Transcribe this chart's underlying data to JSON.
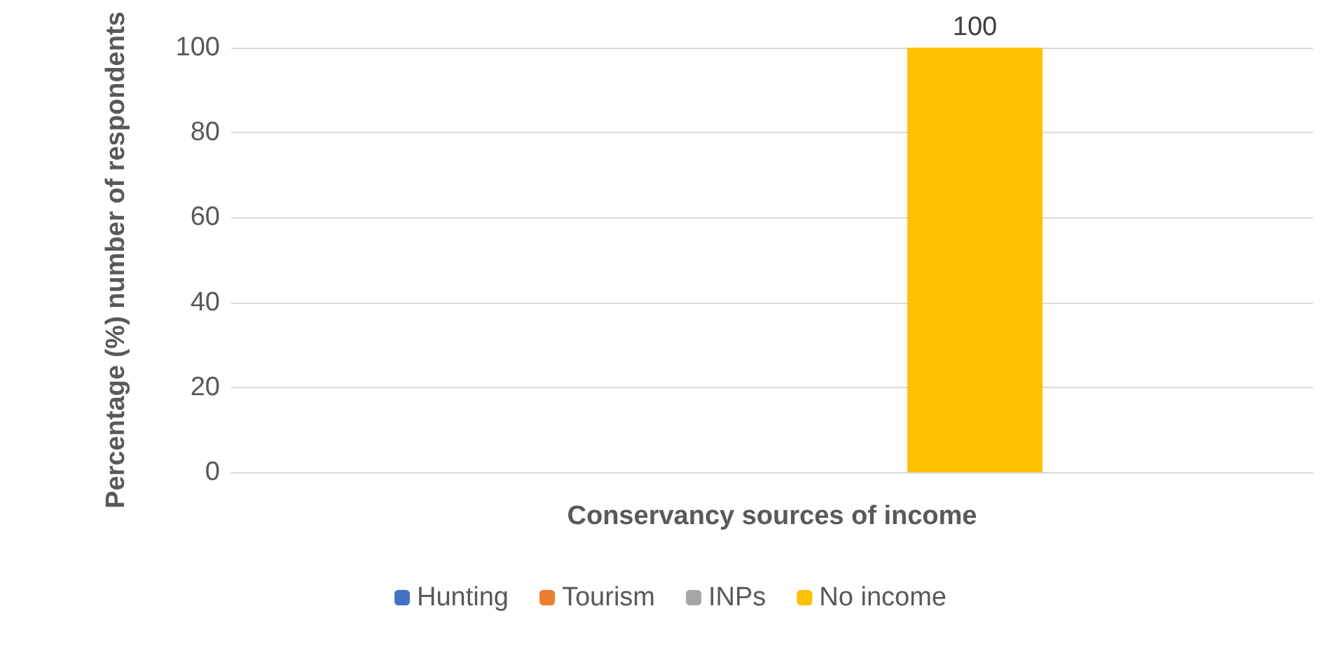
{
  "chart_data": {
    "type": "bar",
    "xlabel": "Conservancy sources of income",
    "ylabel": "Percentage (%) number of respondents",
    "categories": [
      null
    ],
    "series": [
      {
        "name": "Hunting",
        "color": "#4472c4",
        "values": [
          0
        ],
        "value_labels": [
          null
        ]
      },
      {
        "name": "Tourism",
        "color": "#ed7d31",
        "values": [
          0
        ],
        "value_labels": [
          null
        ]
      },
      {
        "name": "INPs",
        "color": "#a5a5a5",
        "values": [
          0
        ],
        "value_labels": [
          null
        ]
      },
      {
        "name": "No income",
        "color": "#ffc000",
        "values": [
          100
        ],
        "value_labels": [
          "100"
        ]
      }
    ],
    "ylim": [
      0,
      100
    ],
    "yticks": [
      0,
      20,
      40,
      60,
      80,
      100
    ],
    "grid": "y",
    "legend": "bottom"
  }
}
